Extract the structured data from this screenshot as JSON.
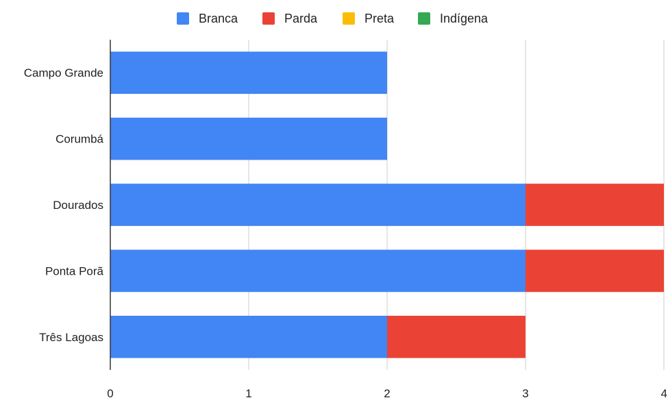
{
  "chart_data": {
    "type": "bar",
    "orientation": "horizontal",
    "stacked": true,
    "categories": [
      "Campo Grande",
      "Corumbá",
      "Dourados",
      "Ponta Porã",
      "Três Lagoas"
    ],
    "series": [
      {
        "name": "Branca",
        "color": "#4285f4",
        "values": [
          2,
          2,
          3,
          3,
          2
        ]
      },
      {
        "name": "Parda",
        "color": "#ea4335",
        "values": [
          0,
          0,
          1,
          1,
          1
        ]
      },
      {
        "name": "Preta",
        "color": "#fbbc04",
        "values": [
          0,
          0,
          0,
          0,
          0
        ]
      },
      {
        "name": "Indígena",
        "color": "#34a853",
        "values": [
          0,
          0,
          0,
          0,
          0
        ]
      }
    ],
    "xlim": [
      0,
      4
    ],
    "xticks": [
      "0",
      "1",
      "2",
      "3",
      "4"
    ],
    "grid": true,
    "legend_position": "top-center",
    "title": "",
    "xlabel": "",
    "ylabel": ""
  }
}
